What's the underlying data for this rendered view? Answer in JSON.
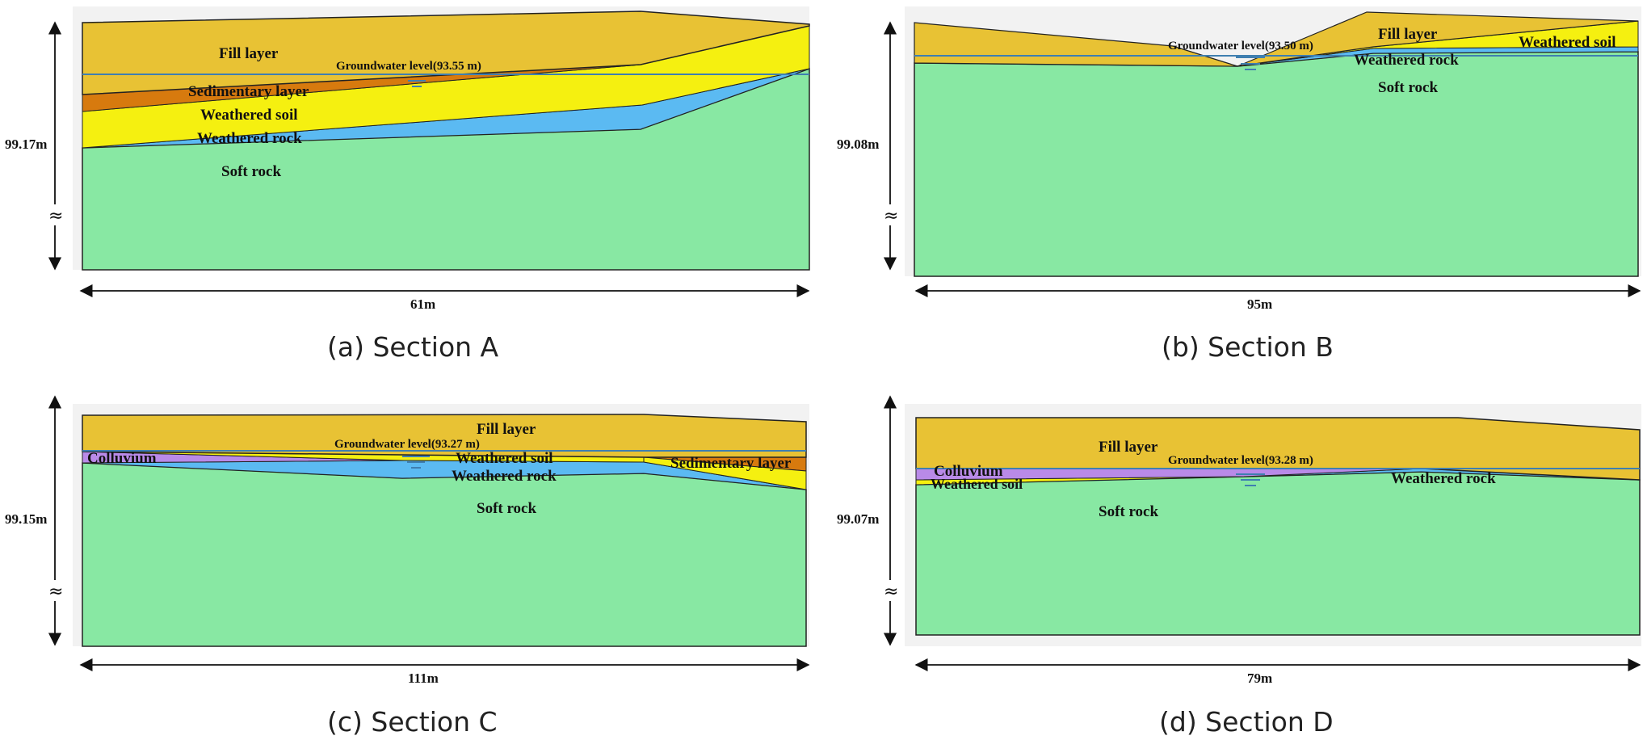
{
  "figure": {
    "panels": [
      {
        "id": "a",
        "caption": "(a) Section A",
        "width_label": "61m",
        "height_label": "99.17m",
        "height_break": "≈",
        "groundwater": {
          "label": "Groundwater level(93.55 m)",
          "symbol": "water-table-icon"
        },
        "layers": [
          {
            "name": "fill",
            "label": "Fill layer",
            "color": "#E8C234"
          },
          {
            "name": "sedimentary",
            "label": "Sedimentary layer",
            "color": "#D77A0E"
          },
          {
            "name": "weathered-soil",
            "label": "Weathered soil",
            "color": "#F5F010"
          },
          {
            "name": "weathered-rock",
            "label": "Weathered rock",
            "color": "#5BBAF2"
          },
          {
            "name": "soft-rock",
            "label": "Soft rock",
            "color": "#88E8A3"
          }
        ]
      },
      {
        "id": "b",
        "caption": "(b) Section B",
        "width_label": "95m",
        "height_label": "99.08m",
        "height_break": "≈",
        "groundwater": {
          "label": "Groundwater level(93.50 m)",
          "symbol": "water-table-icon"
        },
        "layers": [
          {
            "name": "fill",
            "label": "Fill layer",
            "color": "#E8C234"
          },
          {
            "name": "weathered-soil",
            "label": "Weathered soil",
            "color": "#F5F010"
          },
          {
            "name": "weathered-rock",
            "label": "Weathered rock",
            "color": "#5BBAF2"
          },
          {
            "name": "soft-rock",
            "label": "Soft rock",
            "color": "#88E8A3"
          }
        ]
      },
      {
        "id": "c",
        "caption": "(c) Section C",
        "width_label": "111m",
        "height_label": "99.15m",
        "height_break": "≈",
        "groundwater": {
          "label": "Groundwater level(93.27 m)",
          "symbol": "water-table-icon"
        },
        "layers": [
          {
            "name": "fill",
            "label": "Fill layer",
            "color": "#E8C234"
          },
          {
            "name": "colluvium",
            "label": "Colluvium",
            "color": "#B98AE8"
          },
          {
            "name": "weathered-soil",
            "label": "Weathered soil",
            "color": "#F5F010"
          },
          {
            "name": "sedimentary",
            "label": "Sedimentary layer",
            "color": "#D77A0E"
          },
          {
            "name": "weathered-rock",
            "label": "Weathered rock",
            "color": "#5BBAF2"
          },
          {
            "name": "soft-rock",
            "label": "Soft rock",
            "color": "#88E8A3"
          }
        ]
      },
      {
        "id": "d",
        "caption": "(d) Section D",
        "width_label": "79m",
        "height_label": "99.07m",
        "height_break": "≈",
        "groundwater": {
          "label": "Groundwater level(93.28 m)",
          "symbol": "water-table-icon"
        },
        "layers": [
          {
            "name": "fill",
            "label": "Fill layer",
            "color": "#E8C234"
          },
          {
            "name": "colluvium",
            "label": "Colluvium",
            "color": "#B98AE8"
          },
          {
            "name": "weathered-soil",
            "label": "Weathered soil",
            "color": "#F5F010"
          },
          {
            "name": "weathered-rock",
            "label": "Weathered rock",
            "color": "#5BBAF2"
          },
          {
            "name": "soft-rock",
            "label": "Soft rock",
            "color": "#88E8A3"
          }
        ]
      }
    ],
    "groundwater_line_color": "#3F7FB0"
  }
}
